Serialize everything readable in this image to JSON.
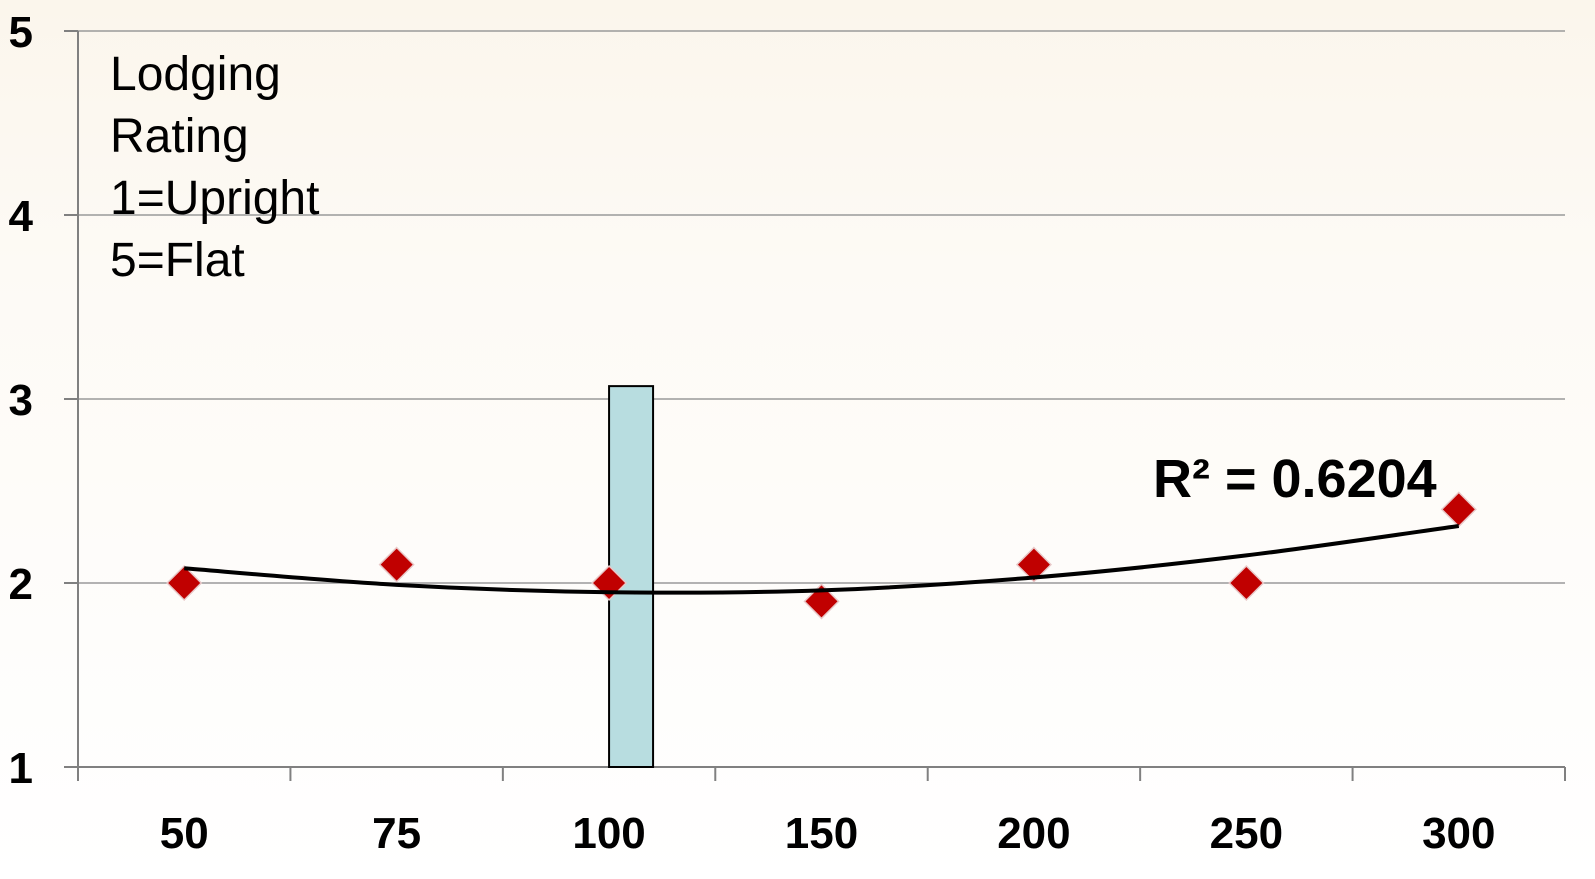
{
  "chart_data": {
    "type": "scatter",
    "x_categories": [
      "50",
      "75",
      "100",
      "150",
      "200",
      "250",
      "300"
    ],
    "y_ticks": [
      "1",
      "2",
      "3",
      "4",
      "5"
    ],
    "ylim": [
      1,
      5
    ],
    "grid": true,
    "series": [
      {
        "values": [
          2.0,
          2.1,
          2.0,
          1.9,
          2.1,
          2.0,
          2.4
        ],
        "color": "#c00000",
        "marker": "diamond"
      }
    ],
    "trendline": {
      "type": "polynomial",
      "color": "#000000",
      "values": [
        2.08,
        1.99,
        1.95,
        1.96,
        2.03,
        2.15,
        2.31
      ],
      "r2_label": "R² = 0.6204"
    },
    "highlight_bar": {
      "category": "100",
      "value": 3.07,
      "color": "#b8dde0"
    },
    "annotation_lines": [
      "Lodging",
      "Rating",
      "1=Upright",
      "5=Flat"
    ]
  }
}
